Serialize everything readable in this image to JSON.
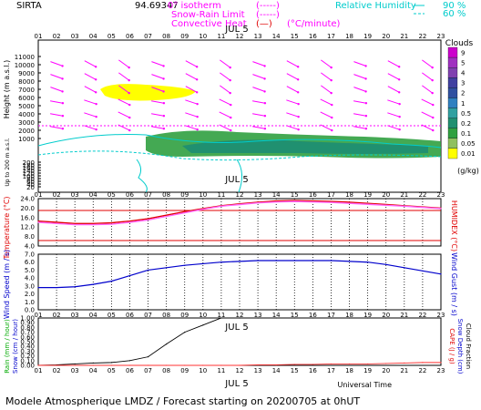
{
  "header": {
    "site": "SIRTA",
    "coords": "94.69347",
    "legend_isotherm": "0° isotherm",
    "legend_snow_rain": "Snow-Rain Limit",
    "legend_convective": "Convective Heat",
    "legend_convective_unit": "(°C/minute)",
    "legend_rh": "Relative Humidity",
    "rh_90": "90 %",
    "rh_60": "60 %"
  },
  "date_label": "JUL  5",
  "footer": "Modele Atmospherique LMDZ / Forecast starting on 20200705 at 0hUT",
  "universal_time": "Universal Time",
  "chart_data": [
    {
      "type": "heatmap",
      "name": "clouds",
      "x": [
        "01",
        "02",
        "03",
        "04",
        "05",
        "06",
        "07",
        "08",
        "09",
        "10",
        "11",
        "12",
        "13",
        "14",
        "15",
        "16",
        "17",
        "18",
        "19",
        "20",
        "21",
        "22",
        "23"
      ],
      "ylabel": "Height (m a.s.l.)",
      "ylabel2": "Up to 200 m a.s.l.",
      "yticks": [
        "11000",
        "10000",
        "9000",
        "8000",
        "7000",
        "6000",
        "5000",
        "4000",
        "3000",
        "2000",
        "1000",
        "200",
        "180",
        "160",
        "140",
        "120",
        "100",
        "80",
        "60",
        "40",
        "20"
      ],
      "colorbar_title": "Clouds",
      "colorbar_unit": "(g/kg)",
      "colorbar_ticks": [
        "9",
        "5",
        "4",
        "3",
        "2",
        "1",
        "0.5",
        "0.2",
        "0.1",
        "0.05",
        "0.01"
      ],
      "colorbar_colors": [
        "#cc00cc",
        "#a030c0",
        "#8040b0",
        "#4040a0",
        "#3050a0",
        "#3080c0",
        "#30a0a0",
        "#209070",
        "#30a040",
        "#90c060",
        "#ffff00"
      ],
      "isotherm_height": 3800
    },
    {
      "type": "line",
      "name": "temperature",
      "ylabel": "Temperature (°C)",
      "ylabel2": "HUMIDEX (°C)",
      "yticks": [
        "24.0",
        "20.0",
        "16.0",
        "12.0",
        "8.0",
        "4.0"
      ],
      "ylim": [
        4,
        24
      ],
      "x": [
        1,
        2,
        3,
        4,
        5,
        6,
        7,
        8,
        9,
        10,
        11,
        12,
        13,
        14,
        15,
        16,
        17,
        18,
        19,
        20,
        21,
        22,
        23
      ],
      "series": [
        {
          "values": [
            14.5,
            14.0,
            13.5,
            13.5,
            13.8,
            14.5,
            15.5,
            17.0,
            18.5,
            19.8,
            21.0,
            21.8,
            22.5,
            23.0,
            23.2,
            23.0,
            22.8,
            22.5,
            22.0,
            21.5,
            21.0,
            20.5,
            20.0
          ],
          "color": "#e00000"
        },
        {
          "values": [
            14.0,
            13.5,
            13.0,
            13.0,
            13.2,
            14.0,
            15.0,
            16.5,
            18.0,
            19.5,
            20.8,
            21.5,
            22.2,
            22.6,
            22.8,
            22.6,
            22.4,
            22.0,
            21.6,
            21.2,
            20.8,
            20.3,
            19.8
          ],
          "color": "#ff66ff"
        }
      ]
    },
    {
      "type": "line",
      "name": "wind",
      "ylabel": "Wind Speed (m / s)",
      "ylabel2": "Wind Gust (m / s)",
      "yticks": [
        "7.0",
        "6.0",
        "5.0",
        "4.0",
        "3.0",
        "2.0",
        "1.0",
        "0.0"
      ],
      "ylim": [
        0,
        7
      ],
      "x": [
        1,
        2,
        3,
        4,
        5,
        6,
        7,
        8,
        9,
        10,
        11,
        12,
        13,
        14,
        15,
        16,
        17,
        18,
        19,
        20,
        21,
        22,
        23
      ],
      "series": [
        {
          "values": [
            2.8,
            2.8,
            2.9,
            3.2,
            3.6,
            4.3,
            5.0,
            5.3,
            5.6,
            5.8,
            6.0,
            6.1,
            6.2,
            6.2,
            6.2,
            6.2,
            6.2,
            6.1,
            6.0,
            5.7,
            5.3,
            4.9,
            4.5
          ],
          "color": "#0000cc"
        }
      ]
    },
    {
      "type": "line",
      "name": "precipitation",
      "ylabel": "Rain (mm / hour)",
      "ylabel_b": "Snow (cm / hour)",
      "ylabel2": "CAPE (J / g)",
      "ylabel2_b": "Snow Depth (cm)",
      "ylabel2_c": "Cloud Fraction",
      "yticks": [
        "1.00",
        "0.90",
        "0.80",
        "0.70",
        "0.60",
        "0.50",
        "0.40",
        "0.30",
        "0.20",
        "0.10",
        "0.00"
      ],
      "ylim": [
        0,
        1
      ],
      "x": [
        1,
        2,
        3,
        4,
        5,
        6,
        7,
        8,
        9,
        10,
        11,
        12,
        13,
        14,
        15,
        16,
        17,
        18,
        19,
        20,
        21,
        22,
        23
      ],
      "series": [
        {
          "values": [
            0.0,
            0.01,
            0.03,
            0.05,
            0.06,
            0.1,
            0.18,
            0.45,
            0.7,
            0.85,
            1.0,
            1.0,
            1.0,
            1.0,
            1.0,
            1.0,
            1.0,
            1.0,
            1.0,
            1.0,
            1.0,
            1.0,
            1.0
          ],
          "color": "#000000"
        },
        {
          "values": [
            0,
            0,
            0,
            0,
            0,
            0,
            0,
            0,
            0,
            0,
            0,
            0,
            0.01,
            0.01,
            0.02,
            0.02,
            0.03,
            0.03,
            0.03,
            0.04,
            0.05,
            0.06,
            0.06
          ],
          "color": "#ff3030"
        }
      ]
    }
  ]
}
